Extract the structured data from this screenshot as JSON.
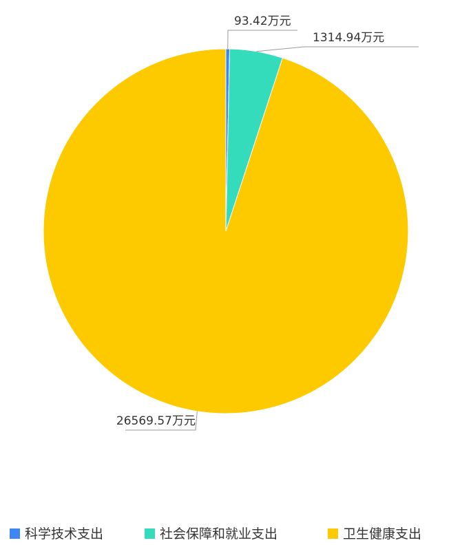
{
  "chart_data": {
    "type": "pie",
    "title": "",
    "unit": "万元",
    "legend_position": "bottom",
    "series": [
      {
        "name": "科学技术支出",
        "value": 93.42,
        "label": "93.42万元",
        "color": "#3d86f3"
      },
      {
        "name": "社会保障和就业支出",
        "value": 1314.94,
        "label": "1314.94万元",
        "color": "#35dcbb"
      },
      {
        "name": "卫生健康支出",
        "value": 26569.57,
        "label": "26569.57万元",
        "color": "#fdca00"
      }
    ]
  }
}
